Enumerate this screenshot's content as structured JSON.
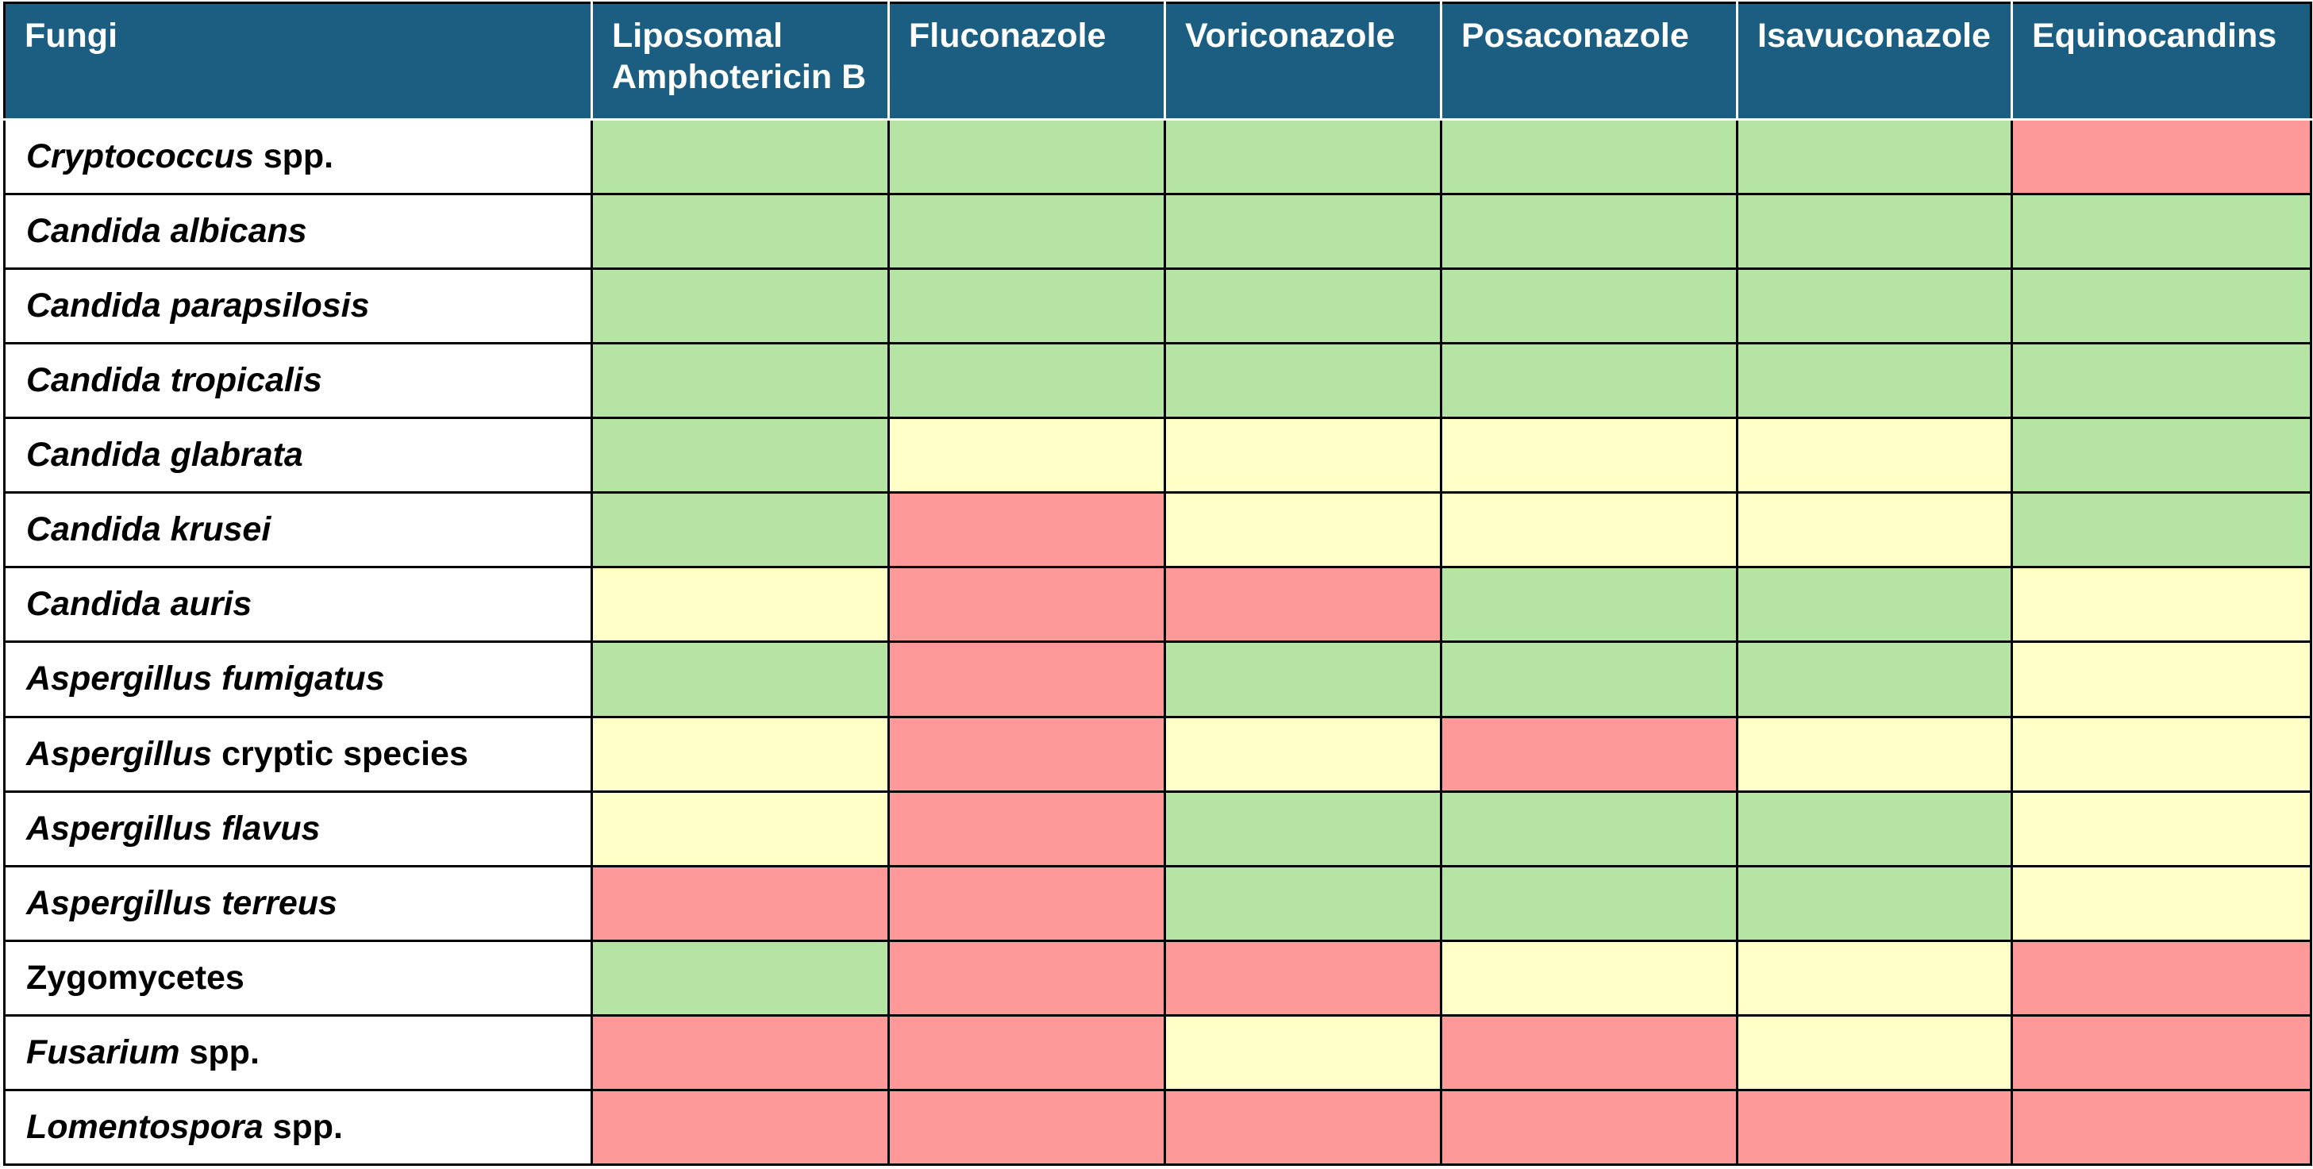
{
  "legend_colors": {
    "green": "#b5e4a4",
    "yellow": "#ffffc8",
    "red": "#fe9999"
  },
  "header": {
    "fungi_label": "Fungi",
    "drugs": [
      {
        "line1": "Liposomal",
        "line2": "Amphotericin B"
      },
      {
        "line1": "Fluconazole",
        "line2": ""
      },
      {
        "line1": "Voriconazole",
        "line2": ""
      },
      {
        "line1": "Posaconazole",
        "line2": ""
      },
      {
        "line1": "Isavuconazole",
        "line2": ""
      },
      {
        "line1": "Equinocandins",
        "line2": ""
      }
    ],
    "background": "#1b5e82"
  },
  "rows": [
    {
      "italic": "Cryptococcus",
      "plain": " spp.",
      "activity": [
        "green",
        "green",
        "green",
        "green",
        "green",
        "red"
      ]
    },
    {
      "italic": "Candida albicans",
      "plain": "",
      "activity": [
        "green",
        "green",
        "green",
        "green",
        "green",
        "green"
      ]
    },
    {
      "italic": "Candida parapsilosis",
      "plain": "",
      "activity": [
        "green",
        "green",
        "green",
        "green",
        "green",
        "green"
      ]
    },
    {
      "italic": "Candida tropicalis",
      "plain": "",
      "activity": [
        "green",
        "green",
        "green",
        "green",
        "green",
        "green"
      ]
    },
    {
      "italic": "Candida glabrata",
      "plain": "",
      "activity": [
        "green",
        "yellow",
        "yellow",
        "yellow",
        "yellow",
        "green"
      ]
    },
    {
      "italic": "Candida krusei",
      "plain": "",
      "activity": [
        "green",
        "red",
        "yellow",
        "yellow",
        "yellow",
        "green"
      ]
    },
    {
      "italic": "Candida auris",
      "plain": "",
      "activity": [
        "yellow",
        "red",
        "red",
        "green",
        "green",
        "yellow"
      ]
    },
    {
      "italic": "Aspergillus fumigatus",
      "plain": "",
      "activity": [
        "green",
        "red",
        "green",
        "green",
        "green",
        "yellow"
      ]
    },
    {
      "italic": "Aspergillus",
      "plain": " cryptic species",
      "activity": [
        "yellow",
        "red",
        "yellow",
        "red",
        "yellow",
        "yellow"
      ]
    },
    {
      "italic": "Aspergillus flavus",
      "plain": "",
      "activity": [
        "yellow",
        "red",
        "green",
        "green",
        "green",
        "yellow"
      ]
    },
    {
      "italic": "Aspergillus terreus",
      "plain": "",
      "activity": [
        "red",
        "red",
        "green",
        "green",
        "green",
        "yellow"
      ]
    },
    {
      "italic": "",
      "plain": "Zygomycetes",
      "activity": [
        "green",
        "red",
        "red",
        "yellow",
        "yellow",
        "red"
      ]
    },
    {
      "italic": "Fusarium",
      "plain": " spp.",
      "activity": [
        "red",
        "red",
        "yellow",
        "red",
        "yellow",
        "red"
      ]
    },
    {
      "italic": "Lomentospora",
      "plain": " spp.",
      "activity": [
        "red",
        "red",
        "red",
        "red",
        "red",
        "red"
      ]
    }
  ]
}
